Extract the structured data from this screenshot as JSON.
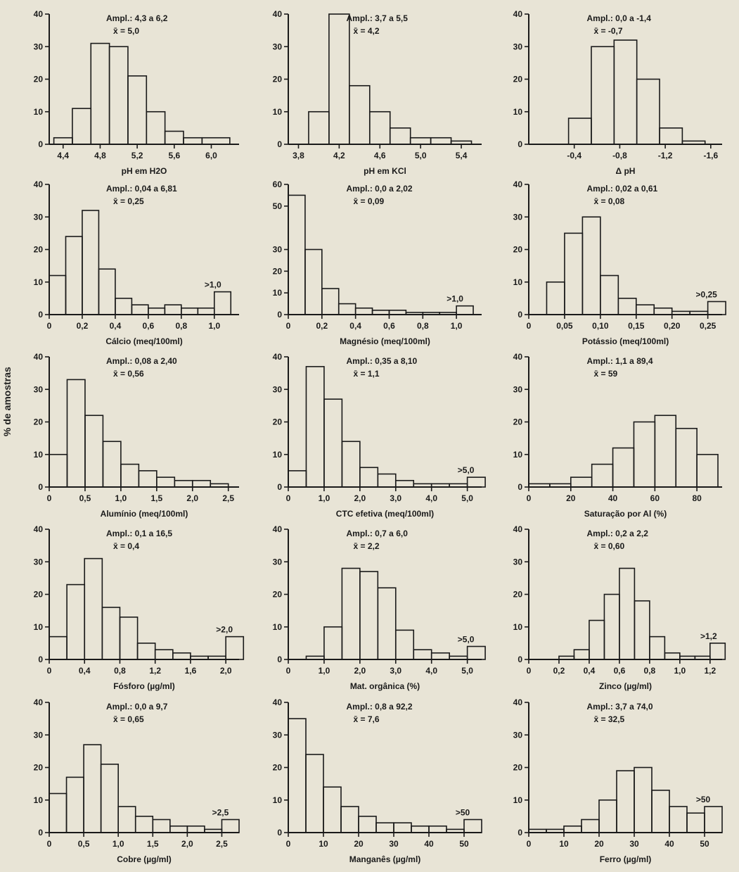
{
  "figure": {
    "ylabel": "% de amostras",
    "colors": {
      "background": "#e8e4d6",
      "ink": "#1a1a1a"
    }
  },
  "chart_data": [
    {
      "type": "bar",
      "xlabel": "pH em H2O",
      "ampl": "Ampl.: 4,3 a 6,2",
      "mean": "x̄ = 5,0",
      "ylim": [
        0,
        40
      ],
      "yticks": [
        0,
        10,
        20,
        30,
        40
      ],
      "xlim": [
        4.25,
        6.3
      ],
      "xticks": [
        4.4,
        4.8,
        5.2,
        5.6,
        6.0
      ],
      "xtick_labels": [
        "4,4",
        "4,8",
        "5,2",
        "5,6",
        "6,0"
      ],
      "bins": [
        [
          4.3,
          4.5,
          2
        ],
        [
          4.5,
          4.7,
          11
        ],
        [
          4.7,
          4.9,
          31
        ],
        [
          4.9,
          5.1,
          30
        ],
        [
          5.1,
          5.3,
          21
        ],
        [
          5.3,
          5.5,
          10
        ],
        [
          5.5,
          5.7,
          4
        ],
        [
          5.7,
          5.9,
          2
        ],
        [
          5.9,
          6.2,
          2
        ]
      ],
      "overflow": ""
    },
    {
      "type": "bar",
      "xlabel": "pH em KCl",
      "ampl": "Ampl.: 3,7 a 5,5",
      "mean": "x̄ = 4,2",
      "ylim": [
        0,
        40
      ],
      "yticks": [
        0,
        10,
        20,
        30,
        40
      ],
      "xlim": [
        3.7,
        5.6
      ],
      "xticks": [
        3.8,
        4.2,
        4.6,
        5.0,
        5.4
      ],
      "xtick_labels": [
        "3,8",
        "4,2",
        "4,6",
        "5,0",
        "5,4"
      ],
      "bins": [
        [
          3.9,
          4.1,
          10
        ],
        [
          4.1,
          4.3,
          40
        ],
        [
          4.3,
          4.5,
          18
        ],
        [
          4.5,
          4.7,
          10
        ],
        [
          4.7,
          4.9,
          5
        ],
        [
          4.9,
          5.1,
          2
        ],
        [
          5.1,
          5.3,
          2
        ],
        [
          5.3,
          5.5,
          1
        ]
      ],
      "overflow": ""
    },
    {
      "type": "bar",
      "xlabel": "Δ pH",
      "ampl": "Ampl.: 0,0 a -1,4",
      "mean": "x̄ = -0,7",
      "ylim": [
        0,
        40
      ],
      "yticks": [
        0,
        10,
        20,
        30,
        40
      ],
      "xlim": [
        0.0,
        -1.7
      ],
      "xticks": [
        -0.4,
        -0.8,
        -1.2,
        -1.6
      ],
      "xtick_labels": [
        "-0,4",
        "-0,8",
        "-1,2",
        "-1,6"
      ],
      "bins": [
        [
          -0.35,
          -0.55,
          8
        ],
        [
          -0.55,
          -0.75,
          30
        ],
        [
          -0.75,
          -0.95,
          32
        ],
        [
          -0.95,
          -1.15,
          20
        ],
        [
          -1.15,
          -1.35,
          5
        ],
        [
          -1.35,
          -1.55,
          1
        ]
      ],
      "overflow": ""
    },
    {
      "type": "bar",
      "xlabel": "Cálcio (meq/100ml)",
      "ampl": "Ampl.: 0,04 a 6,81",
      "mean": "x̄ = 0,25",
      "ylim": [
        0,
        40
      ],
      "yticks": [
        0,
        10,
        20,
        30,
        40
      ],
      "xlim": [
        0,
        1.15
      ],
      "xticks": [
        0,
        0.2,
        0.4,
        0.6,
        0.8,
        1.0
      ],
      "xtick_labels": [
        "0",
        "0,2",
        "0,4",
        "0,6",
        "0,8",
        "1,0"
      ],
      "bins": [
        [
          0,
          0.1,
          12
        ],
        [
          0.1,
          0.2,
          24
        ],
        [
          0.2,
          0.3,
          32
        ],
        [
          0.3,
          0.4,
          14
        ],
        [
          0.4,
          0.5,
          5
        ],
        [
          0.5,
          0.6,
          3
        ],
        [
          0.6,
          0.7,
          2
        ],
        [
          0.7,
          0.8,
          3
        ],
        [
          0.8,
          0.9,
          2
        ],
        [
          0.9,
          1.0,
          2
        ],
        [
          1.0,
          1.1,
          7
        ]
      ],
      "overflow": ">1,0"
    },
    {
      "type": "bar",
      "xlabel": "Magnésio (meq/100ml)",
      "ampl": "Ampl.: 0,0 a 2,02",
      "mean": "x̄ = 0,09",
      "ylim": [
        0,
        60
      ],
      "yticks": [
        0,
        10,
        20,
        30,
        50,
        60
      ],
      "xlim": [
        0,
        1.15
      ],
      "xticks": [
        0,
        0.2,
        0.4,
        0.6,
        0.8,
        1.0
      ],
      "xtick_labels": [
        "0",
        "0,2",
        "0,4",
        "0,6",
        "0,8",
        "1,0"
      ],
      "bins": [
        [
          0,
          0.1,
          55
        ],
        [
          0.1,
          0.2,
          30
        ],
        [
          0.2,
          0.3,
          12
        ],
        [
          0.3,
          0.4,
          5
        ],
        [
          0.4,
          0.5,
          3
        ],
        [
          0.5,
          0.6,
          2
        ],
        [
          0.6,
          0.7,
          2
        ],
        [
          0.7,
          0.8,
          1
        ],
        [
          0.8,
          0.9,
          1
        ],
        [
          0.9,
          1.0,
          1
        ],
        [
          1.0,
          1.1,
          4
        ]
      ],
      "overflow": ">1,0"
    },
    {
      "type": "bar",
      "xlabel": "Potássio (meq/100ml)",
      "ampl": "Ampl.: 0,02 a 0,61",
      "mean": "x̄ = 0,08",
      "ylim": [
        0,
        40
      ],
      "yticks": [
        0,
        10,
        20,
        30,
        40
      ],
      "xlim": [
        0,
        0.27
      ],
      "xticks": [
        0,
        0.05,
        0.1,
        0.15,
        0.2,
        0.25
      ],
      "xtick_labels": [
        "0",
        "0,05",
        "0,10",
        "0,15",
        "0,20",
        "0,25"
      ],
      "bins": [
        [
          0.025,
          0.05,
          10
        ],
        [
          0.05,
          0.075,
          25
        ],
        [
          0.075,
          0.1,
          30
        ],
        [
          0.1,
          0.125,
          12
        ],
        [
          0.125,
          0.15,
          5
        ],
        [
          0.15,
          0.175,
          3
        ],
        [
          0.175,
          0.2,
          2
        ],
        [
          0.2,
          0.225,
          1
        ],
        [
          0.225,
          0.25,
          1
        ],
        [
          0.25,
          0.275,
          4
        ]
      ],
      "overflow": ">0,25"
    },
    {
      "type": "bar",
      "xlabel": "Alumínio (meq/100ml)",
      "ampl": "Ampl.: 0,08 a 2,40",
      "mean": "x̄ = 0,56",
      "ylim": [
        0,
        40
      ],
      "yticks": [
        0,
        10,
        20,
        30,
        40
      ],
      "xlim": [
        0,
        2.65
      ],
      "xticks": [
        0,
        0.5,
        1.0,
        1.5,
        2.0,
        2.5
      ],
      "xtick_labels": [
        "0",
        "0,5",
        "1,0",
        "1,5",
        "2,0",
        "2,5"
      ],
      "bins": [
        [
          0,
          0.25,
          10
        ],
        [
          0.25,
          0.5,
          33
        ],
        [
          0.5,
          0.75,
          22
        ],
        [
          0.75,
          1.0,
          14
        ],
        [
          1.0,
          1.25,
          7
        ],
        [
          1.25,
          1.5,
          5
        ],
        [
          1.5,
          1.75,
          3
        ],
        [
          1.75,
          2.0,
          2
        ],
        [
          2.0,
          2.25,
          2
        ],
        [
          2.25,
          2.5,
          1
        ]
      ],
      "overflow": ""
    },
    {
      "type": "bar",
      "xlabel": "CTC efetiva (meq/100ml)",
      "ampl": "Ampl.: 0,35 a 8,10",
      "mean": "x̄ = 1,1",
      "ylim": [
        0,
        40
      ],
      "yticks": [
        0,
        10,
        20,
        30,
        40
      ],
      "xlim": [
        0,
        5.4
      ],
      "xticks": [
        0,
        1.0,
        2.0,
        3.0,
        4.0,
        5.0
      ],
      "xtick_labels": [
        "0",
        "1,0",
        "2,0",
        "3,0",
        "4,0",
        "5,0"
      ],
      "bins": [
        [
          0,
          0.5,
          5
        ],
        [
          0.5,
          1.0,
          37
        ],
        [
          1.0,
          1.5,
          27
        ],
        [
          1.5,
          2.0,
          14
        ],
        [
          2.0,
          2.5,
          6
        ],
        [
          2.5,
          3.0,
          4
        ],
        [
          3.0,
          3.5,
          2
        ],
        [
          3.5,
          4.0,
          1
        ],
        [
          4.0,
          4.5,
          1
        ],
        [
          4.5,
          5.0,
          1
        ],
        [
          5.0,
          5.5,
          3
        ]
      ],
      "overflow": ">5,0"
    },
    {
      "type": "bar",
      "xlabel": "Saturação por Al (%)",
      "ampl": "Ampl.: 1,1 a 89,4",
      "mean": "x̄ = 59",
      "ylim": [
        0,
        40
      ],
      "yticks": [
        0,
        10,
        20,
        30,
        40
      ],
      "xlim": [
        0,
        92
      ],
      "xticks": [
        0,
        20,
        40,
        60,
        80
      ],
      "xtick_labels": [
        "0",
        "20",
        "40",
        "60",
        "80"
      ],
      "bins": [
        [
          0,
          10,
          1
        ],
        [
          10,
          20,
          1
        ],
        [
          20,
          30,
          3
        ],
        [
          30,
          40,
          7
        ],
        [
          40,
          50,
          12
        ],
        [
          50,
          60,
          20
        ],
        [
          60,
          70,
          22
        ],
        [
          70,
          80,
          18
        ],
        [
          80,
          90,
          10
        ]
      ],
      "overflow": ""
    },
    {
      "type": "bar",
      "xlabel": "Fósforo (µg/ml)",
      "ampl": "Ampl.: 0,1 a 16,5",
      "mean": "x̄ = 0,4",
      "ylim": [
        0,
        40
      ],
      "yticks": [
        0,
        10,
        20,
        30,
        40
      ],
      "xlim": [
        0,
        2.15
      ],
      "xticks": [
        0,
        0.4,
        0.8,
        1.2,
        1.6,
        2.0
      ],
      "xtick_labels": [
        "0",
        "0,4",
        "0,8",
        "1,2",
        "1,6",
        "2,0"
      ],
      "bins": [
        [
          0,
          0.2,
          7
        ],
        [
          0.2,
          0.4,
          23
        ],
        [
          0.4,
          0.6,
          31
        ],
        [
          0.6,
          0.8,
          16
        ],
        [
          0.8,
          1.0,
          13
        ],
        [
          1.0,
          1.2,
          5
        ],
        [
          1.2,
          1.4,
          3
        ],
        [
          1.4,
          1.6,
          2
        ],
        [
          1.6,
          1.8,
          1
        ],
        [
          1.8,
          2.0,
          1
        ],
        [
          2.0,
          2.2,
          7
        ]
      ],
      "overflow": ">2,0"
    },
    {
      "type": "bar",
      "xlabel": "Mat. orgânica (%)",
      "ampl": "Ampl.: 0,7 a 6,0",
      "mean": "x̄ = 2,2",
      "ylim": [
        0,
        40
      ],
      "yticks": [
        0,
        10,
        20,
        30,
        40
      ],
      "xlim": [
        0,
        5.4
      ],
      "xticks": [
        0,
        1.0,
        2.0,
        3.0,
        4.0,
        5.0
      ],
      "xtick_labels": [
        "0",
        "1,0",
        "2,0",
        "3,0",
        "4,0",
        "5,0"
      ],
      "bins": [
        [
          0.5,
          1.0,
          1
        ],
        [
          1.0,
          1.5,
          10
        ],
        [
          1.5,
          2.0,
          28
        ],
        [
          2.0,
          2.5,
          27
        ],
        [
          2.5,
          3.0,
          22
        ],
        [
          3.0,
          3.5,
          9
        ],
        [
          3.5,
          4.0,
          3
        ],
        [
          4.0,
          4.5,
          2
        ],
        [
          4.5,
          5.0,
          1
        ],
        [
          5.0,
          5.5,
          4
        ]
      ],
      "overflow": ">5,0"
    },
    {
      "type": "bar",
      "xlabel": "Zinco (µg/ml)",
      "ampl": "Ampl.: 0,2 a 2,2",
      "mean": "x̄ = 0,60",
      "ylim": [
        0,
        40
      ],
      "yticks": [
        0,
        10,
        20,
        30,
        40
      ],
      "xlim": [
        0,
        1.28
      ],
      "xticks": [
        0,
        0.2,
        0.4,
        0.6,
        0.8,
        1.0,
        1.2
      ],
      "xtick_labels": [
        "0",
        "0,2",
        "0,4",
        "0,6",
        "0,8",
        "1,0",
        "1,2"
      ],
      "bins": [
        [
          0.2,
          0.3,
          1
        ],
        [
          0.3,
          0.4,
          3
        ],
        [
          0.4,
          0.5,
          12
        ],
        [
          0.5,
          0.6,
          20
        ],
        [
          0.6,
          0.7,
          28
        ],
        [
          0.7,
          0.8,
          18
        ],
        [
          0.8,
          0.9,
          7
        ],
        [
          0.9,
          1.0,
          2
        ],
        [
          1.0,
          1.1,
          1
        ],
        [
          1.1,
          1.2,
          1
        ],
        [
          1.2,
          1.3,
          5
        ]
      ],
      "overflow": ">1,2"
    },
    {
      "type": "bar",
      "xlabel": "Cobre (µg/ml)",
      "ampl": "Ampl.: 0,0 a 9,7",
      "mean": "x̄ = 0,65",
      "ylim": [
        0,
        40
      ],
      "yticks": [
        0,
        10,
        20,
        30,
        40
      ],
      "xlim": [
        0,
        2.75
      ],
      "xticks": [
        0,
        0.5,
        1.0,
        1.5,
        2.0,
        2.5
      ],
      "xtick_labels": [
        "0",
        "0,5",
        "1,0",
        "1,5",
        "2,0",
        "2,5"
      ],
      "bins": [
        [
          0,
          0.25,
          12
        ],
        [
          0.25,
          0.5,
          17
        ],
        [
          0.5,
          0.75,
          27
        ],
        [
          0.75,
          1.0,
          21
        ],
        [
          1.0,
          1.25,
          8
        ],
        [
          1.25,
          1.5,
          5
        ],
        [
          1.5,
          1.75,
          4
        ],
        [
          1.75,
          2.0,
          2
        ],
        [
          2.0,
          2.25,
          2
        ],
        [
          2.25,
          2.5,
          1
        ],
        [
          2.5,
          2.75,
          4
        ]
      ],
      "overflow": ">2,5"
    },
    {
      "type": "bar",
      "xlabel": "Manganês (µg/ml)",
      "ampl": "Ampl.: 0,8 a 92,2",
      "mean": "x̄ = 7,6",
      "ylim": [
        0,
        40
      ],
      "yticks": [
        0,
        10,
        20,
        30,
        40
      ],
      "xlim": [
        0,
        55
      ],
      "xticks": [
        0,
        10,
        20,
        30,
        40,
        50
      ],
      "xtick_labels": [
        "0",
        "10",
        "20",
        "30",
        "40",
        "50"
      ],
      "bins": [
        [
          0,
          5,
          35
        ],
        [
          5,
          10,
          24
        ],
        [
          10,
          15,
          14
        ],
        [
          15,
          20,
          8
        ],
        [
          20,
          25,
          5
        ],
        [
          25,
          30,
          3
        ],
        [
          30,
          35,
          3
        ],
        [
          35,
          40,
          2
        ],
        [
          40,
          45,
          2
        ],
        [
          45,
          50,
          1
        ],
        [
          50,
          55,
          4
        ]
      ],
      "overflow": ">50"
    },
    {
      "type": "bar",
      "xlabel": "Ferro (µg/ml)",
      "ampl": "Ampl.: 3,7 a 74,0",
      "mean": "x̄ = 32,5",
      "ylim": [
        0,
        40
      ],
      "yticks": [
        0,
        10,
        20,
        30,
        40
      ],
      "xlim": [
        0,
        55
      ],
      "xticks": [
        0,
        10,
        20,
        30,
        40,
        50
      ],
      "xtick_labels": [
        "0",
        "10",
        "20",
        "30",
        "40",
        "50"
      ],
      "bins": [
        [
          0,
          5,
          1
        ],
        [
          5,
          10,
          1
        ],
        [
          10,
          15,
          2
        ],
        [
          15,
          20,
          4
        ],
        [
          20,
          25,
          10
        ],
        [
          25,
          30,
          19
        ],
        [
          30,
          35,
          20
        ],
        [
          35,
          40,
          13
        ],
        [
          40,
          45,
          8
        ],
        [
          45,
          50,
          6
        ],
        [
          50,
          55,
          8
        ]
      ],
      "overflow": ">50"
    }
  ]
}
